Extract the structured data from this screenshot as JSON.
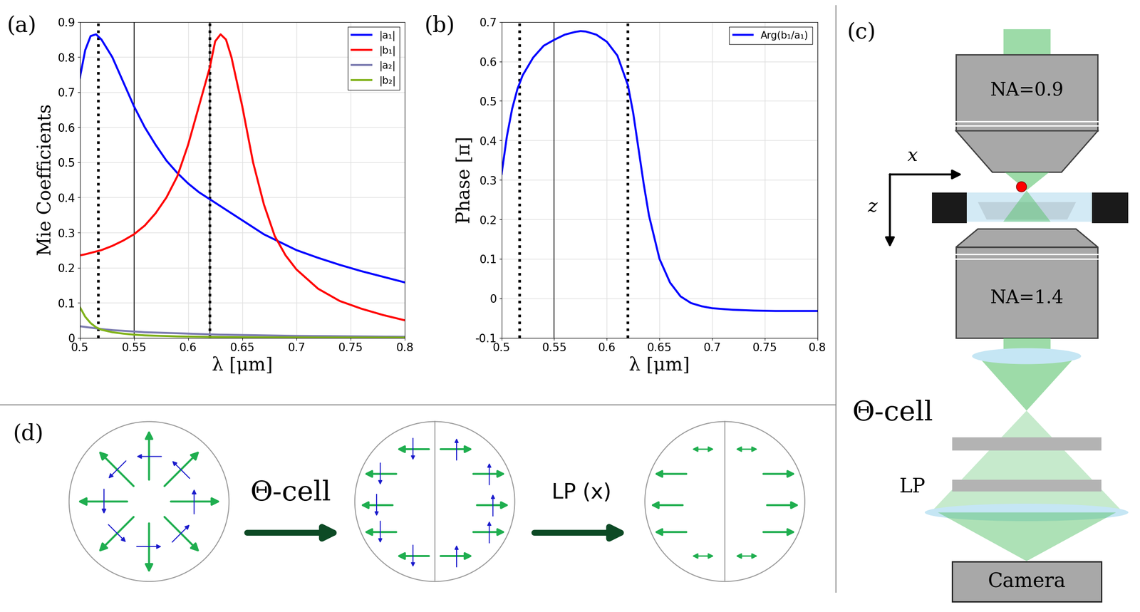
{
  "chart_data": [
    {
      "type": "line",
      "panel": "(a)",
      "x_label": "λ [μm]",
      "y_label": "Mie Coefficients",
      "x": [
        0.5,
        0.505,
        0.51,
        0.515,
        0.52,
        0.53,
        0.54,
        0.55,
        0.56,
        0.57,
        0.58,
        0.59,
        0.6,
        0.61,
        0.62,
        0.625,
        0.63,
        0.635,
        0.64,
        0.65,
        0.66,
        0.67,
        0.68,
        0.69,
        0.7,
        0.72,
        0.74,
        0.76,
        0.78,
        0.8
      ],
      "series": [
        {
          "name": "|a₁|",
          "color": "#0000ff",
          "values": [
            0.74,
            0.82,
            0.86,
            0.865,
            0.85,
            0.8,
            0.73,
            0.66,
            0.6,
            0.55,
            0.505,
            0.47,
            0.44,
            0.415,
            0.395,
            0.385,
            0.375,
            0.365,
            0.355,
            0.335,
            0.315,
            0.295,
            0.28,
            0.265,
            0.25,
            0.228,
            0.208,
            0.19,
            0.174,
            0.158
          ]
        },
        {
          "name": "|b₁|",
          "color": "#ff0000",
          "values": [
            0.235,
            0.238,
            0.242,
            0.246,
            0.25,
            0.262,
            0.277,
            0.295,
            0.32,
            0.355,
            0.4,
            0.46,
            0.55,
            0.66,
            0.77,
            0.845,
            0.865,
            0.85,
            0.8,
            0.66,
            0.5,
            0.38,
            0.29,
            0.235,
            0.195,
            0.14,
            0.105,
            0.083,
            0.065,
            0.05
          ]
        },
        {
          "name": "|a₂|",
          "color": "#7b7bb0",
          "values": [
            0.033,
            0.031,
            0.029,
            0.027,
            0.025,
            0.022,
            0.02,
            0.018,
            0.016,
            0.015,
            0.014,
            0.013,
            0.012,
            0.011,
            0.01,
            0.0095,
            0.009,
            0.0088,
            0.0085,
            0.008,
            0.0075,
            0.007,
            0.0065,
            0.006,
            0.0055,
            0.005,
            0.0045,
            0.004,
            0.0035,
            0.003
          ]
        },
        {
          "name": "|b₂|",
          "color": "#80b21a",
          "values": [
            0.088,
            0.06,
            0.042,
            0.03,
            0.023,
            0.016,
            0.012,
            0.009,
            0.007,
            0.006,
            0.005,
            0.004,
            0.0035,
            0.003,
            0.0025,
            0.0024,
            0.0022,
            0.002,
            0.002,
            0.0018,
            0.0016,
            0.0015,
            0.0014,
            0.0013,
            0.0012,
            0.001,
            0.001,
            0.0009,
            0.0008,
            0.0008
          ]
        }
      ],
      "xlim": [
        0.5,
        0.8
      ],
      "xticks": [
        0.5,
        0.55,
        0.6,
        0.65,
        0.7,
        0.75,
        0.8
      ],
      "ylim": [
        0,
        0.9
      ],
      "yticks": [
        0,
        0.1,
        0.2,
        0.3,
        0.4,
        0.5,
        0.6,
        0.7,
        0.8,
        0.9
      ],
      "grid": true,
      "legend": "upper right",
      "vlines": [
        {
          "x": 0.517,
          "line_style": "dotted"
        },
        {
          "x": 0.55,
          "line_style": "solid"
        },
        {
          "x": 0.62,
          "line_style": "solid"
        },
        {
          "x": 0.62,
          "line_style": "dotted"
        }
      ]
    },
    {
      "type": "line",
      "panel": "(b)",
      "x_label": "λ [μm]",
      "y_label": "Phase [π]",
      "x": [
        0.5,
        0.505,
        0.51,
        0.515,
        0.52,
        0.53,
        0.54,
        0.55,
        0.56,
        0.57,
        0.575,
        0.58,
        0.59,
        0.6,
        0.61,
        0.62,
        0.625,
        0.63,
        0.635,
        0.64,
        0.65,
        0.66,
        0.67,
        0.68,
        0.69,
        0.7,
        0.72,
        0.74,
        0.76,
        0.78,
        0.8
      ],
      "series": [
        {
          "name": "Arg(b₁/a₁)",
          "color": "#0000ff",
          "values": [
            0.315,
            0.41,
            0.48,
            0.53,
            0.565,
            0.61,
            0.64,
            0.655,
            0.668,
            0.675,
            0.677,
            0.676,
            0.668,
            0.65,
            0.615,
            0.54,
            0.47,
            0.38,
            0.29,
            0.21,
            0.1,
            0.04,
            0.005,
            -0.012,
            -0.02,
            -0.025,
            -0.029,
            -0.031,
            -0.032,
            -0.032,
            -0.032
          ]
        }
      ],
      "xlim": [
        0.5,
        0.8
      ],
      "xticks": [
        0.5,
        0.55,
        0.6,
        0.65,
        0.7,
        0.75,
        0.8
      ],
      "ylim": [
        -0.1,
        0.7
      ],
      "yticks": [
        -0.1,
        0,
        0.1,
        0.2,
        0.3,
        0.4,
        0.5,
        0.6,
        0.7
      ],
      "grid": true,
      "legend": "upper right",
      "vlines": [
        {
          "x": 0.517,
          "line_style": "dotted"
        },
        {
          "x": 0.55,
          "line_style": "solid"
        },
        {
          "x": 0.62,
          "line_style": "dotted"
        }
      ]
    }
  ],
  "diagrams": {
    "c": {
      "panel": "(c)",
      "objectives": [
        "NA=0.9",
        "NA=1.4"
      ],
      "axis_labels": [
        "x",
        "z"
      ],
      "components": [
        "Θ-cell",
        "LP"
      ],
      "detector": "Camera"
    },
    "d": {
      "panel": "(d)",
      "steps": [
        "Θ-cell",
        "LP (x)"
      ]
    }
  }
}
